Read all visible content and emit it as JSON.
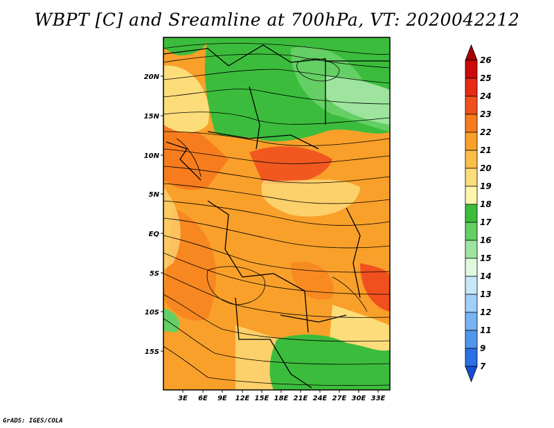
{
  "title": "WBPT [C] and Sreamline at 700hPa, VT: 2020042212",
  "footer": "GrADS: IGES/COLA",
  "map": {
    "lat_ticks": [
      "20N",
      "15N",
      "10N",
      "5N",
      "EQ",
      "5S",
      "10S",
      "15S"
    ],
    "lon_ticks": [
      "3E",
      "6E",
      "9E",
      "12E",
      "15E",
      "18E",
      "21E",
      "24E",
      "27E",
      "30E",
      "33E"
    ]
  },
  "colorbar": {
    "labels": [
      "26",
      "25",
      "24",
      "23",
      "22",
      "21",
      "20",
      "19",
      "18",
      "17",
      "16",
      "15",
      "14",
      "13",
      "12",
      "11",
      "9",
      "7"
    ],
    "colors": [
      "#a50000",
      "#cd0a0a",
      "#e62a14",
      "#f0501e",
      "#f77c1e",
      "#f9a02a",
      "#fbbd46",
      "#fddc7a",
      "#fff6ae",
      "#3cbc3c",
      "#64cf64",
      "#9ee49e",
      "#e0fae0",
      "#c8e8fa",
      "#a0d0f8",
      "#78b4f4",
      "#5096ee",
      "#2c70e4",
      "#1450d2"
    ]
  }
}
